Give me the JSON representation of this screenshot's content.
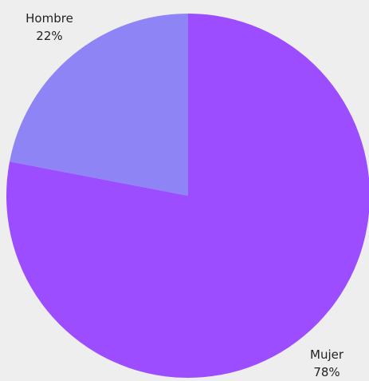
{
  "chart_data": {
    "type": "pie",
    "categories": [
      "Mujer",
      "Hombre"
    ],
    "values": [
      78,
      22
    ],
    "value_labels": [
      "78%",
      "22%"
    ],
    "colors": [
      "#9b4dff",
      "#8f84f5"
    ]
  }
}
